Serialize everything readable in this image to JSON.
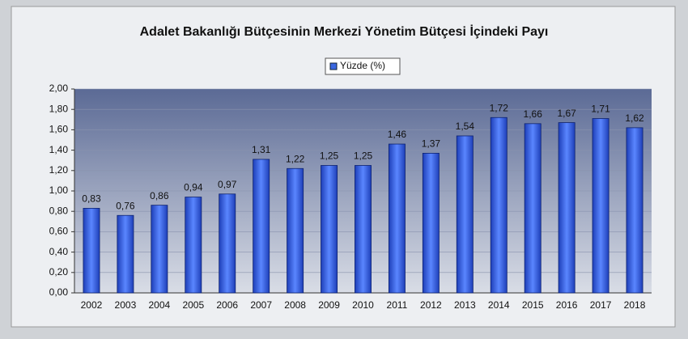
{
  "chart_data": {
    "type": "bar",
    "title": "Adalet Bakanlığı Bütçesinin Merkezi Yönetim Bütçesi İçindeki Payı",
    "categories": [
      "2002",
      "2003",
      "2004",
      "2005",
      "2006",
      "2007",
      "2008",
      "2009",
      "2010",
      "2011",
      "2012",
      "2013",
      "2014",
      "2015",
      "2016",
      "2017",
      "2018"
    ],
    "series": [
      {
        "name": "Yüzde (%)",
        "color": "#3a67e0",
        "values": [
          0.83,
          0.76,
          0.86,
          0.94,
          0.97,
          1.31,
          1.22,
          1.25,
          1.25,
          1.46,
          1.37,
          1.54,
          1.72,
          1.66,
          1.67,
          1.71,
          1.62
        ],
        "value_labels": [
          "0,83",
          "0,76",
          "0,86",
          "0,94",
          "0,97",
          "1,31",
          "1,22",
          "1,25",
          "1,25",
          "1,46",
          "1,37",
          "1,54",
          "1,72",
          "1,66",
          "1,67",
          "1,71",
          "1,62"
        ]
      }
    ],
    "ylim": [
      0,
      2
    ],
    "yticks": [
      {
        "value": 0,
        "label": "0,00"
      },
      {
        "value": 0.2,
        "label": "0,20"
      },
      {
        "value": 0.4,
        "label": "0,40"
      },
      {
        "value": 0.6,
        "label": "0,60"
      },
      {
        "value": 0.8,
        "label": "0,80"
      },
      {
        "value": 1,
        "label": "1,00"
      },
      {
        "value": 1.2,
        "label": "1,20"
      },
      {
        "value": 1.4,
        "label": "1,40"
      },
      {
        "value": 1.6,
        "label": "1,60"
      },
      {
        "value": 1.8,
        "label": "1,80"
      },
      {
        "value": 2,
        "label": "2,00"
      }
    ],
    "grid": true,
    "legend": "top"
  }
}
